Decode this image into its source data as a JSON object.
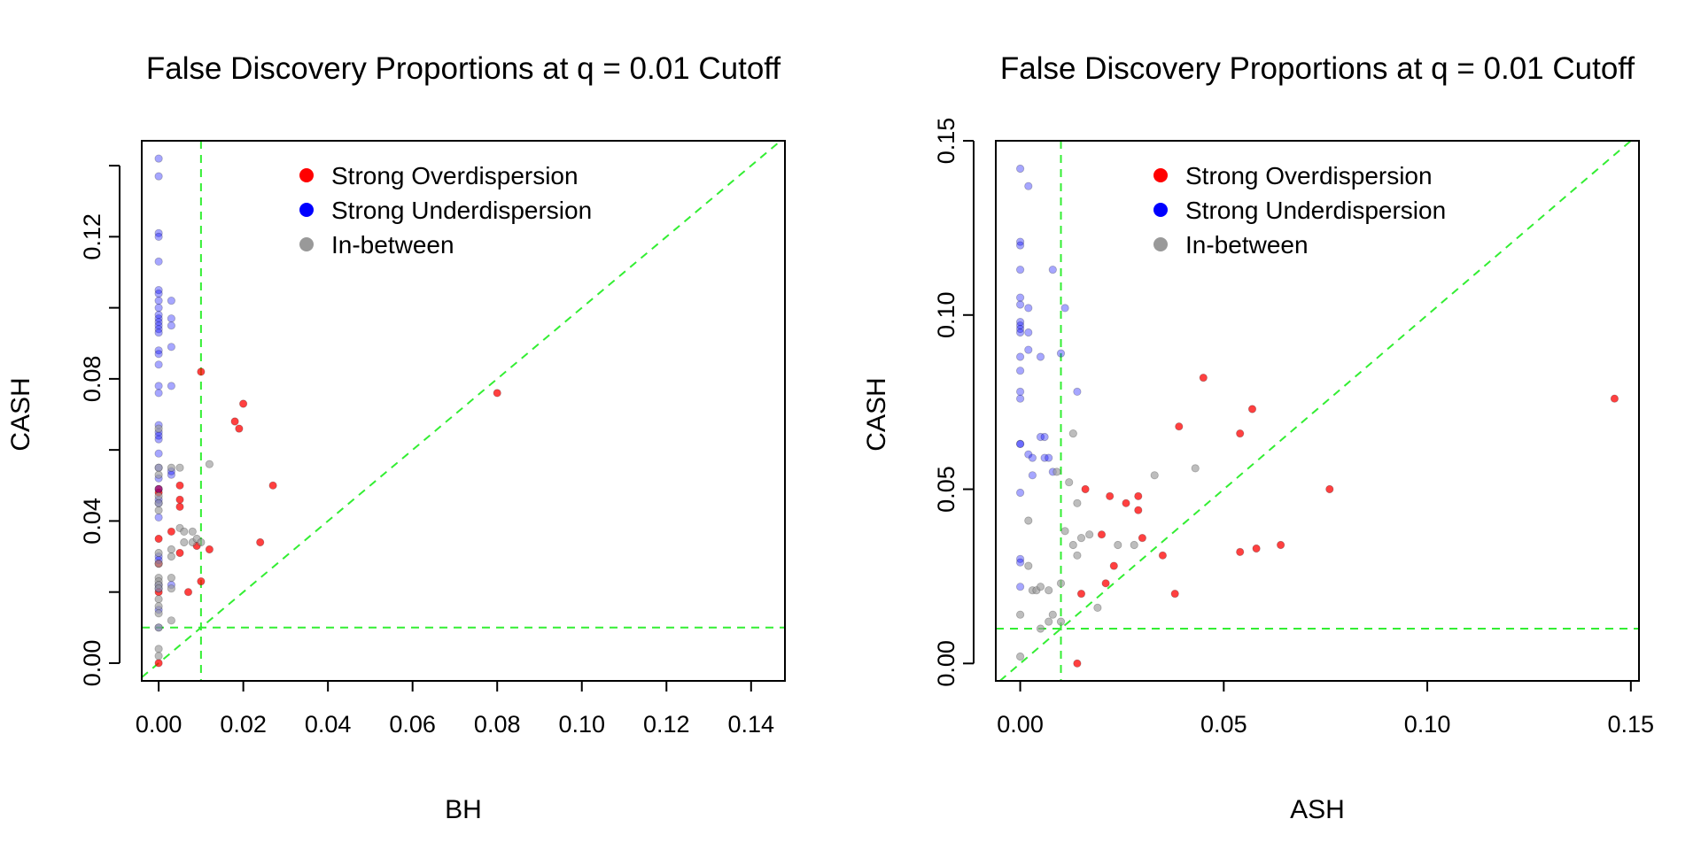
{
  "chart_data": [
    {
      "type": "scatter",
      "title": "False Discovery Proportions at q = 0.01 Cutoff",
      "xlabel": "BH",
      "ylabel": "CASH",
      "xlim": [
        -0.004,
        0.148
      ],
      "ylim": [
        -0.005,
        0.147
      ],
      "x_ticks": [
        0.0,
        0.02,
        0.04,
        0.06,
        0.08,
        0.1,
        0.12,
        0.14
      ],
      "x_tick_labels": [
        "0.00",
        "0.02",
        "0.04",
        "0.06",
        "0.08",
        "0.10",
        "0.12",
        "0.14"
      ],
      "y_ticks": [
        0.0,
        0.04,
        0.08,
        0.12
      ],
      "y_tick_labels": [
        "0.00",
        "0.04",
        "0.08",
        "0.12"
      ],
      "y_minor_ticks": [
        0.02,
        0.06,
        0.1,
        0.14
      ],
      "reference_lines": {
        "vline": 0.01,
        "hline": 0.01,
        "diagonal": true
      },
      "legend": {
        "position": "top",
        "entries": [
          {
            "label": "Strong Overdispersion",
            "color": "#ff0000"
          },
          {
            "label": "Strong Underdispersion",
            "color": "#0000ff"
          },
          {
            "label": "In-between",
            "color": "#999999"
          }
        ]
      },
      "series": [
        {
          "name": "Strong Overdispersion",
          "color": "#ff0000",
          "x": [
            0.0,
            0.0,
            0.0,
            0.0,
            0.0,
            0.0,
            0.003,
            0.005,
            0.005,
            0.005,
            0.005,
            0.007,
            0.009,
            0.01,
            0.01,
            0.012,
            0.018,
            0.019,
            0.02,
            0.024,
            0.027,
            0.08
          ],
          "y": [
            0.0,
            0.02,
            0.028,
            0.035,
            0.048,
            0.049,
            0.037,
            0.05,
            0.046,
            0.044,
            0.031,
            0.02,
            0.033,
            0.082,
            0.023,
            0.032,
            0.068,
            0.066,
            0.073,
            0.034,
            0.05,
            0.076
          ]
        },
        {
          "name": "Strong Underdispersion",
          "color": "#0000ff",
          "x": [
            0.0,
            0.0,
            0.0,
            0.0,
            0.0,
            0.0,
            0.0,
            0.0,
            0.0,
            0.0,
            0.0,
            0.0,
            0.0,
            0.0,
            0.0,
            0.0,
            0.0,
            0.0,
            0.0,
            0.0,
            0.0,
            0.0,
            0.0,
            0.0,
            0.0,
            0.0,
            0.0,
            0.0,
            0.0,
            0.0,
            0.0,
            0.0,
            0.0,
            0.0,
            0.0,
            0.0,
            0.0,
            0.003,
            0.003,
            0.003,
            0.003,
            0.003,
            0.003,
            0.003,
            0.003
          ],
          "y": [
            0.142,
            0.137,
            0.121,
            0.12,
            0.113,
            0.105,
            0.104,
            0.102,
            0.1,
            0.098,
            0.097,
            0.096,
            0.095,
            0.094,
            0.093,
            0.088,
            0.087,
            0.084,
            0.078,
            0.076,
            0.067,
            0.065,
            0.064,
            0.063,
            0.059,
            0.055,
            0.052,
            0.049,
            0.046,
            0.045,
            0.041,
            0.03,
            0.029,
            0.022,
            0.021,
            0.015,
            0.01,
            0.102,
            0.097,
            0.095,
            0.089,
            0.078,
            0.053,
            0.054,
            0.022
          ]
        },
        {
          "name": "In-between",
          "color": "#999999",
          "x": [
            0.0,
            0.0,
            0.0,
            0.0,
            0.0,
            0.0,
            0.0,
            0.0,
            0.0,
            0.0,
            0.0,
            0.0,
            0.0,
            0.0,
            0.0,
            0.0,
            0.0,
            0.0,
            0.003,
            0.003,
            0.003,
            0.003,
            0.003,
            0.003,
            0.005,
            0.005,
            0.006,
            0.006,
            0.008,
            0.008,
            0.009,
            0.01,
            0.012
          ],
          "y": [
            0.066,
            0.055,
            0.053,
            0.047,
            0.045,
            0.043,
            0.031,
            0.028,
            0.024,
            0.023,
            0.022,
            0.021,
            0.018,
            0.016,
            0.014,
            0.01,
            0.004,
            0.002,
            0.055,
            0.032,
            0.03,
            0.024,
            0.021,
            0.012,
            0.055,
            0.038,
            0.037,
            0.034,
            0.037,
            0.034,
            0.035,
            0.034,
            0.056
          ]
        }
      ]
    },
    {
      "type": "scatter",
      "title": "False Discovery Proportions at q = 0.01 Cutoff",
      "xlabel": "ASH",
      "ylabel": "CASH",
      "xlim": [
        -0.006,
        0.152
      ],
      "ylim": [
        -0.005,
        0.15
      ],
      "x_ticks": [
        0.0,
        0.05,
        0.1,
        0.15
      ],
      "x_tick_labels": [
        "0.00",
        "0.05",
        "0.10",
        "0.15"
      ],
      "y_ticks": [
        0.0,
        0.05,
        0.1,
        0.15
      ],
      "y_tick_labels": [
        "0.00",
        "0.05",
        "0.10",
        "0.15"
      ],
      "y_minor_ticks": [],
      "reference_lines": {
        "vline": 0.01,
        "hline": 0.01,
        "diagonal": true
      },
      "legend": {
        "position": "top",
        "entries": [
          {
            "label": "Strong Overdispersion",
            "color": "#ff0000"
          },
          {
            "label": "Strong Underdispersion",
            "color": "#0000ff"
          },
          {
            "label": "In-between",
            "color": "#999999"
          }
        ]
      },
      "series": [
        {
          "name": "Strong Overdispersion",
          "color": "#ff0000",
          "x": [
            0.014,
            0.015,
            0.016,
            0.02,
            0.021,
            0.022,
            0.023,
            0.026,
            0.029,
            0.029,
            0.03,
            0.035,
            0.038,
            0.039,
            0.045,
            0.054,
            0.054,
            0.057,
            0.058,
            0.064,
            0.076,
            0.146
          ],
          "y": [
            0.0,
            0.02,
            0.05,
            0.037,
            0.023,
            0.048,
            0.028,
            0.046,
            0.048,
            0.044,
            0.036,
            0.031,
            0.02,
            0.068,
            0.082,
            0.066,
            0.032,
            0.073,
            0.033,
            0.034,
            0.05,
            0.076
          ]
        },
        {
          "name": "Strong Underdispersion",
          "color": "#0000ff",
          "x": [
            0.0,
            0.0,
            0.0,
            0.0,
            0.0,
            0.0,
            0.0,
            0.0,
            0.0,
            0.0,
            0.0,
            0.0,
            0.0,
            0.0,
            0.0,
            0.0,
            0.0,
            0.0,
            0.0,
            0.0,
            0.002,
            0.002,
            0.002,
            0.002,
            0.002,
            0.003,
            0.003,
            0.005,
            0.005,
            0.006,
            0.006,
            0.007,
            0.008,
            0.008,
            0.01,
            0.011,
            0.014
          ],
          "y": [
            0.142,
            0.121,
            0.12,
            0.113,
            0.105,
            0.103,
            0.098,
            0.097,
            0.096,
            0.095,
            0.088,
            0.084,
            0.078,
            0.076,
            0.063,
            0.063,
            0.049,
            0.03,
            0.029,
            0.022,
            0.137,
            0.102,
            0.095,
            0.09,
            0.06,
            0.059,
            0.054,
            0.088,
            0.065,
            0.059,
            0.065,
            0.059,
            0.113,
            0.055,
            0.089,
            0.102,
            0.078
          ]
        },
        {
          "name": "In-between",
          "color": "#999999",
          "x": [
            0.0,
            0.0,
            0.002,
            0.002,
            0.003,
            0.004,
            0.005,
            0.005,
            0.007,
            0.007,
            0.008,
            0.009,
            0.01,
            0.01,
            0.011,
            0.012,
            0.013,
            0.013,
            0.014,
            0.014,
            0.015,
            0.017,
            0.019,
            0.024,
            0.028,
            0.033,
            0.043
          ],
          "y": [
            0.014,
            0.002,
            0.041,
            0.028,
            0.021,
            0.021,
            0.022,
            0.01,
            0.021,
            0.012,
            0.014,
            0.055,
            0.023,
            0.012,
            0.038,
            0.052,
            0.066,
            0.034,
            0.046,
            0.031,
            0.036,
            0.037,
            0.016,
            0.034,
            0.034,
            0.054,
            0.056
          ]
        }
      ]
    }
  ]
}
